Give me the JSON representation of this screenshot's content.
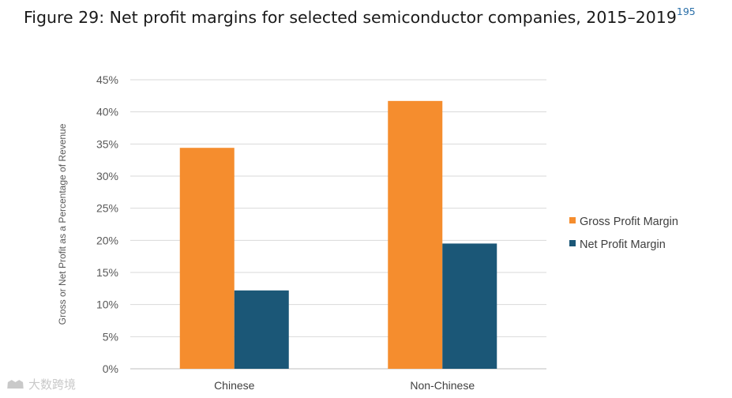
{
  "figure": {
    "title": "Figure 29: Net profit margins for selected semiconductor companies, 2015–2019",
    "footnote_ref": "195"
  },
  "watermark": {
    "text": "大数跨境",
    "icon": "watermark-logo-icon"
  },
  "chart_data": {
    "type": "bar",
    "categories": [
      "Chinese",
      "Non-Chinese"
    ],
    "series": [
      {
        "name": "Gross Profit Margin",
        "values": [
          34.4,
          41.7
        ],
        "color": "#f58d2e"
      },
      {
        "name": "Net Profit Margin",
        "values": [
          12.2,
          19.5
        ],
        "color": "#1b5777"
      }
    ],
    "ylabel": "Gross or Net Profit as a Percentage of Revenue",
    "xlabel": "",
    "ylim": [
      0,
      45
    ],
    "yticks": [
      0,
      5,
      10,
      15,
      20,
      25,
      30,
      35,
      40,
      45
    ],
    "ytick_format": "percent",
    "grid": true,
    "legend_position": "right",
    "colors": {
      "grid": "#d9d9d9",
      "axis_text": "#595959"
    }
  }
}
